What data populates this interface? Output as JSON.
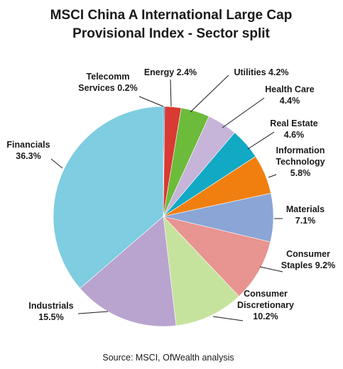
{
  "chart_data": {
    "type": "pie",
    "title_lines": [
      "MSCI China A International Large Cap",
      "Provisional Index - Sector split"
    ],
    "source": "Source: MSCI, OfWealth analysis",
    "slices": [
      {
        "name": "Telecomm Services",
        "value": 0.2,
        "label_lines": [
          "Telecomm",
          "Services 0.2%"
        ],
        "color": "#1f6fb4"
      },
      {
        "name": "Energy",
        "value": 2.4,
        "label_lines": [
          "Energy 2.4%"
        ],
        "color": "#d93a34"
      },
      {
        "name": "Utilities",
        "value": 4.2,
        "label_lines": [
          "Utilities 4.2%"
        ],
        "color": "#6dbb3b"
      },
      {
        "name": "Health Care",
        "value": 4.4,
        "label_lines": [
          "Health Care",
          "4.4%"
        ],
        "color": "#c7b4d9"
      },
      {
        "name": "Real Estate",
        "value": 4.6,
        "label_lines": [
          "Real Estate",
          "4.6%"
        ],
        "color": "#12a9c4"
      },
      {
        "name": "Information Technology",
        "value": 5.8,
        "label_lines": [
          "Information",
          "Technology",
          "5.8%"
        ],
        "color": "#f07f10"
      },
      {
        "name": "Materials",
        "value": 7.1,
        "label_lines": [
          "Materials",
          "7.1%"
        ],
        "color": "#8aa5d6"
      },
      {
        "name": "Consumer Staples",
        "value": 9.2,
        "label_lines": [
          "Consumer",
          "Staples 9.2%"
        ],
        "color": "#e89490"
      },
      {
        "name": "Consumer Discretionary",
        "value": 10.2,
        "label_lines": [
          "Consumer",
          "Discretionary",
          "10.2%"
        ],
        "color": "#c6e39d"
      },
      {
        "name": "Industrials",
        "value": 15.5,
        "label_lines": [
          "Industrials",
          "15.5%"
        ],
        "color": "#b9a3cf"
      },
      {
        "name": "Financials",
        "value": 36.3,
        "label_lines": [
          "Financials",
          "36.3%"
        ],
        "color": "#7ecde0"
      }
    ]
  }
}
